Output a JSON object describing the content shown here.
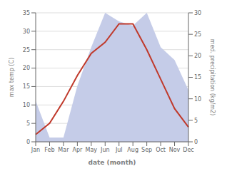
{
  "chart_data": {
    "type": "line",
    "categories": [
      "Jan",
      "Feb",
      "Mar",
      "Apr",
      "May",
      "Jun",
      "Jul",
      "Aug",
      "Sep",
      "Oct",
      "Nov",
      "Dec"
    ],
    "series": [
      {
        "type": "area",
        "axis": "y2",
        "color": "#c5cce8",
        "values": [
          9.5,
          1,
          1,
          13,
          22,
          30,
          28,
          27,
          30,
          22,
          19,
          12
        ]
      },
      {
        "type": "line",
        "axis": "y",
        "color": "#c0392b",
        "values": [
          2,
          5,
          11,
          18,
          24,
          27,
          32,
          32,
          25,
          17,
          9,
          4
        ]
      }
    ],
    "xlabel": "date (month)",
    "ylabel": "max temp (C)",
    "y2label": "med. precipitation (kg/m2)",
    "ylim": [
      0,
      35
    ],
    "yticks": [
      0,
      5,
      10,
      15,
      20,
      25,
      30,
      35
    ],
    "y2lim": [
      0,
      30
    ],
    "y2ticks": [
      0,
      5,
      10,
      15,
      20,
      25,
      30
    ],
    "grid": true
  }
}
